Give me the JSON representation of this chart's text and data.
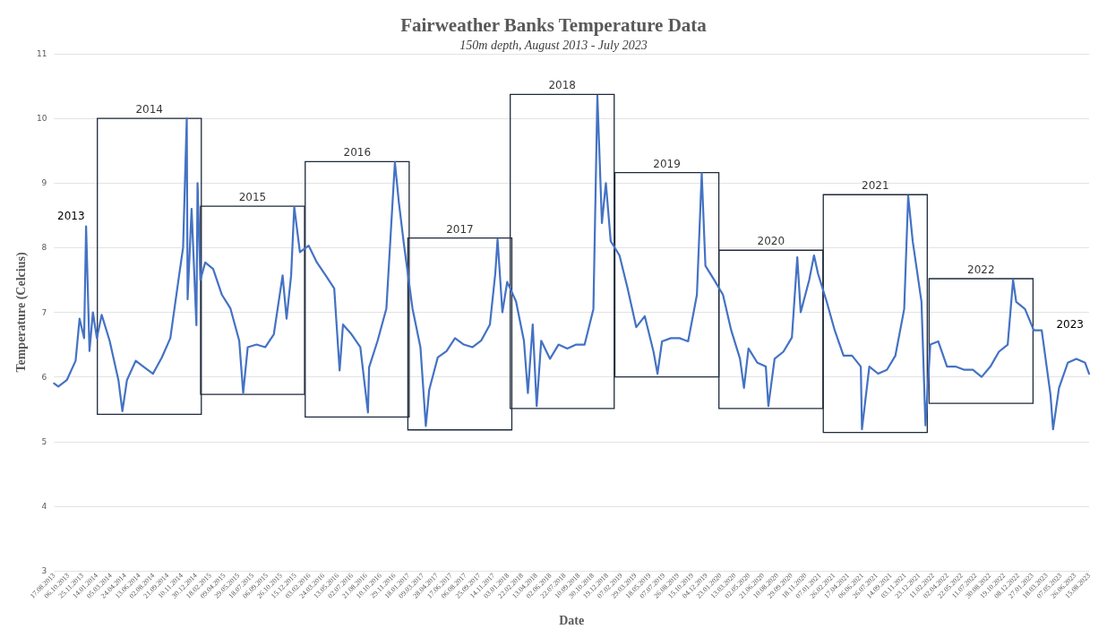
{
  "chart_data": {
    "type": "line",
    "title": "Fairweather Banks Temperature Data",
    "subtitle": "150m depth, August 2013 - July 2023",
    "xlabel": "Date",
    "ylabel": "Temperature (Celcius)",
    "xlim": [
      "2013-08-17",
      "2023-08-15"
    ],
    "ylim": [
      3,
      11
    ],
    "yticks": [
      3,
      4,
      5,
      6,
      7,
      8,
      9,
      10,
      11
    ],
    "grid": "y",
    "marker": "none",
    "line_style": "solid",
    "xticks": [
      {
        "value": "2013-08-17",
        "label": "17.08.2013"
      },
      {
        "value": "2013-10-06",
        "label": "06.10.2013"
      },
      {
        "value": "2013-11-25",
        "label": "25.11.2013"
      },
      {
        "value": "2014-01-14",
        "label": "14.01.2014"
      },
      {
        "value": "2014-03-05",
        "label": "05.03.2014"
      },
      {
        "value": "2014-04-24",
        "label": "24.04.2014"
      },
      {
        "value": "2014-06-13",
        "label": "13.06.2014"
      },
      {
        "value": "2014-08-02",
        "label": "02.08.2014"
      },
      {
        "value": "2014-09-21",
        "label": "21.09.2014"
      },
      {
        "value": "2014-11-10",
        "label": "10.11.2014"
      },
      {
        "value": "2014-12-30",
        "label": "30.12.2014"
      },
      {
        "value": "2015-02-18",
        "label": "18.02.2015"
      },
      {
        "value": "2015-04-09",
        "label": "09.04.2015"
      },
      {
        "value": "2015-05-29",
        "label": "29.05.2015"
      },
      {
        "value": "2015-07-18",
        "label": "18.07.2015"
      },
      {
        "value": "2015-09-06",
        "label": "06.09.2015"
      },
      {
        "value": "2015-10-26",
        "label": "26.10.2015"
      },
      {
        "value": "2015-12-15",
        "label": "15.12.2015"
      },
      {
        "value": "2016-02-03",
        "label": "03.02.2016"
      },
      {
        "value": "2016-03-24",
        "label": "24.03.2016"
      },
      {
        "value": "2016-05-13",
        "label": "13.05.2016"
      },
      {
        "value": "2016-07-02",
        "label": "02.07.2016"
      },
      {
        "value": "2016-08-21",
        "label": "21.08.2016"
      },
      {
        "value": "2016-10-10",
        "label": "10.10.2016"
      },
      {
        "value": "2016-11-29",
        "label": "29.11.2016"
      },
      {
        "value": "2017-01-18",
        "label": "18.01.2017"
      },
      {
        "value": "2017-03-09",
        "label": "09.03.2017"
      },
      {
        "value": "2017-04-28",
        "label": "28.04.2017"
      },
      {
        "value": "2017-06-17",
        "label": "17.06.2017"
      },
      {
        "value": "2017-08-06",
        "label": "06.08.2017"
      },
      {
        "value": "2017-09-25",
        "label": "25.09.2017"
      },
      {
        "value": "2017-11-14",
        "label": "14.11.2017"
      },
      {
        "value": "2018-01-03",
        "label": "03.01.2018"
      },
      {
        "value": "2018-02-22",
        "label": "22.02.2018"
      },
      {
        "value": "2018-04-13",
        "label": "13.04.2018"
      },
      {
        "value": "2018-06-02",
        "label": "02.06.2018"
      },
      {
        "value": "2018-07-22",
        "label": "22.07.2018"
      },
      {
        "value": "2018-09-10",
        "label": "10.09.2018"
      },
      {
        "value": "2018-10-30",
        "label": "30.10.2018"
      },
      {
        "value": "2018-12-19",
        "label": "19.12.2018"
      },
      {
        "value": "2019-02-07",
        "label": "07.02.2019"
      },
      {
        "value": "2019-03-29",
        "label": "29.03.2019"
      },
      {
        "value": "2019-05-18",
        "label": "18.05.2019"
      },
      {
        "value": "2019-07-07",
        "label": "07.07.2019"
      },
      {
        "value": "2019-08-26",
        "label": "26.08.2019"
      },
      {
        "value": "2019-10-15",
        "label": "15.10.2019"
      },
      {
        "value": "2019-12-04",
        "label": "04.12.2019"
      },
      {
        "value": "2020-01-23",
        "label": "23.01.2020"
      },
      {
        "value": "2020-03-13",
        "label": "13.03.2020"
      },
      {
        "value": "2020-05-02",
        "label": "02.05.2020"
      },
      {
        "value": "2020-06-21",
        "label": "21.06.2020"
      },
      {
        "value": "2020-08-10",
        "label": "10.08.2020"
      },
      {
        "value": "2020-09-29",
        "label": "29.09.2020"
      },
      {
        "value": "2020-11-18",
        "label": "18.11.2020"
      },
      {
        "value": "2021-01-07",
        "label": "07.01.2021"
      },
      {
        "value": "2021-02-26",
        "label": "26.02.2021"
      },
      {
        "value": "2021-04-17",
        "label": "17.04.2021"
      },
      {
        "value": "2021-06-06",
        "label": "06.06.2021"
      },
      {
        "value": "2021-07-26",
        "label": "26.07.2021"
      },
      {
        "value": "2021-09-14",
        "label": "14.09.2021"
      },
      {
        "value": "2021-11-03",
        "label": "03.11.2021"
      },
      {
        "value": "2021-12-23",
        "label": "23.12.2021"
      },
      {
        "value": "2022-02-11",
        "label": "11.02.2022"
      },
      {
        "value": "2022-04-02",
        "label": "02.04.2022"
      },
      {
        "value": "2022-05-22",
        "label": "22.05.2022"
      },
      {
        "value": "2022-07-11",
        "label": "11.07.2022"
      },
      {
        "value": "2022-08-30",
        "label": "30.08.2022"
      },
      {
        "value": "2022-10-19",
        "label": "19.10.2022"
      },
      {
        "value": "2022-12-08",
        "label": "08.12.2022"
      },
      {
        "value": "2023-01-27",
        "label": "27.01.2023"
      },
      {
        "value": "2023-03-18",
        "label": "18.03.2023"
      },
      {
        "value": "2023-05-07",
        "label": "07.05.2023"
      },
      {
        "value": "2023-06-26",
        "label": "26.06.2023"
      },
      {
        "value": "2023-08-15",
        "label": "15.08.2023"
      }
    ],
    "series": [
      {
        "color": "#4472c4",
        "x": [
          "2013-08-17",
          "2013-09-01",
          "2013-10-01",
          "2013-11-01",
          "2013-11-15",
          "2013-12-01",
          "2013-12-08",
          "2013-12-20",
          "2014-01-01",
          "2014-01-15",
          "2014-02-01",
          "2014-03-01",
          "2014-04-01",
          "2014-04-15",
          "2014-05-01",
          "2014-06-01",
          "2014-07-01",
          "2014-08-01",
          "2014-09-01",
          "2014-10-01",
          "2014-11-01",
          "2014-11-15",
          "2014-11-28",
          "2014-12-01",
          "2014-12-15",
          "2015-01-01",
          "2015-01-05",
          "2015-01-15",
          "2015-02-01",
          "2015-03-01",
          "2015-04-01",
          "2015-05-01",
          "2015-06-01",
          "2015-06-15",
          "2015-07-01",
          "2015-08-01",
          "2015-09-01",
          "2015-10-01",
          "2015-11-01",
          "2015-11-15",
          "2015-12-01",
          "2015-12-12",
          "2016-01-01",
          "2016-02-01",
          "2016-03-01",
          "2016-04-01",
          "2016-05-01",
          "2016-05-20",
          "2016-06-01",
          "2016-07-01",
          "2016-08-01",
          "2016-08-28",
          "2016-09-01",
          "2016-10-01",
          "2016-11-01",
          "2016-11-20",
          "2016-12-01",
          "2016-12-15",
          "2017-01-01",
          "2017-02-01",
          "2017-03-01",
          "2017-03-20",
          "2017-04-01",
          "2017-05-01",
          "2017-06-01",
          "2017-07-01",
          "2017-08-01",
          "2017-09-01",
          "2017-10-01",
          "2017-11-01",
          "2017-11-20",
          "2017-11-28",
          "2017-12-15",
          "2018-01-01",
          "2018-02-01",
          "2018-03-01",
          "2018-03-15",
          "2018-04-01",
          "2018-04-15",
          "2018-05-01",
          "2018-06-01",
          "2018-07-01",
          "2018-08-01",
          "2018-09-01",
          "2018-10-01",
          "2018-11-01",
          "2018-11-15",
          "2018-12-01",
          "2018-12-15",
          "2019-01-01",
          "2019-02-01",
          "2019-03-01",
          "2019-04-01",
          "2019-05-01",
          "2019-06-01",
          "2019-06-15",
          "2019-07-01",
          "2019-08-01",
          "2019-09-01",
          "2019-10-01",
          "2019-11-01",
          "2019-11-18",
          "2019-12-01",
          "2020-01-01",
          "2020-02-01",
          "2020-03-01",
          "2020-04-01",
          "2020-04-15",
          "2020-05-01",
          "2020-06-01",
          "2020-07-01",
          "2020-07-10",
          "2020-08-01",
          "2020-09-01",
          "2020-10-01",
          "2020-10-20",
          "2020-11-01",
          "2020-12-01",
          "2020-12-18",
          "2021-01-01",
          "2021-02-01",
          "2021-03-01",
          "2021-04-01",
          "2021-05-01",
          "2021-06-01",
          "2021-06-05",
          "2021-07-01",
          "2021-08-01",
          "2021-09-01",
          "2021-10-01",
          "2021-11-01",
          "2021-11-15",
          "2021-12-01",
          "2022-01-01",
          "2022-01-15",
          "2022-02-01",
          "2022-03-01",
          "2022-04-01",
          "2022-05-01",
          "2022-06-01",
          "2022-07-01",
          "2022-08-01",
          "2022-09-01",
          "2022-10-01",
          "2022-11-01",
          "2022-11-20",
          "2022-12-01",
          "2023-01-01",
          "2023-02-01",
          "2023-03-01",
          "2023-04-01",
          "2023-04-10",
          "2023-05-01",
          "2023-06-01",
          "2023-07-01",
          "2023-08-01",
          "2023-08-15"
        ],
        "values": [
          5.9,
          5.85,
          5.95,
          6.25,
          6.9,
          6.6,
          8.33,
          6.4,
          7.0,
          6.6,
          6.96,
          6.56,
          5.95,
          5.47,
          5.95,
          6.25,
          6.15,
          6.05,
          6.3,
          6.6,
          7.57,
          8.0,
          10.0,
          7.2,
          8.6,
          6.8,
          9.0,
          7.5,
          7.77,
          7.67,
          7.27,
          7.06,
          6.56,
          5.75,
          6.46,
          6.5,
          6.46,
          6.66,
          7.57,
          6.9,
          7.57,
          8.63,
          7.93,
          8.03,
          7.77,
          7.57,
          7.37,
          6.1,
          6.81,
          6.66,
          6.46,
          5.45,
          6.15,
          6.56,
          7.06,
          8.5,
          9.32,
          8.7,
          8.08,
          7.06,
          6.46,
          5.24,
          5.8,
          6.3,
          6.4,
          6.6,
          6.5,
          6.46,
          6.56,
          6.81,
          7.6,
          8.13,
          7.0,
          7.47,
          7.17,
          6.56,
          5.75,
          6.81,
          5.55,
          6.56,
          6.28,
          6.5,
          6.44,
          6.5,
          6.5,
          7.05,
          10.35,
          8.38,
          9.0,
          8.1,
          7.88,
          7.38,
          6.77,
          6.94,
          6.39,
          6.05,
          6.55,
          6.6,
          6.6,
          6.55,
          7.27,
          9.15,
          7.72,
          7.5,
          7.27,
          6.72,
          6.28,
          5.83,
          6.44,
          6.22,
          6.16,
          5.55,
          6.28,
          6.39,
          6.61,
          7.85,
          7.0,
          7.5,
          7.88,
          7.6,
          7.16,
          6.72,
          6.33,
          6.33,
          6.16,
          5.19,
          6.16,
          6.05,
          6.11,
          6.33,
          7.05,
          8.8,
          8.1,
          7.16,
          5.25,
          6.5,
          6.55,
          6.16,
          6.16,
          6.11,
          6.11,
          6.0,
          6.16,
          6.39,
          6.5,
          7.5,
          7.16,
          7.05,
          6.72,
          6.72,
          5.72,
          5.19,
          5.83,
          6.22,
          6.28,
          6.22,
          6.05
        ]
      },
      {
        "type": "bar",
        "color": "#1f2a3c",
        "x": [
          "2014-07-19",
          "2015-07-18",
          "2016-07-21",
          "2017-07-18",
          "2018-07-14",
          "2019-07-18",
          "2020-07-19",
          "2021-07-22",
          "2022-07-30"
        ],
        "base": [
          5.42,
          5.73,
          5.38,
          5.18,
          5.51,
          6.0,
          5.51,
          5.14,
          5.59
        ],
        "values": [
          4.58,
          2.91,
          3.95,
          2.97,
          4.86,
          3.16,
          2.45,
          3.68,
          1.93
        ]
      }
    ],
    "annotations": [
      "2013",
      {
        "text": "2014",
        "x": "2014-07-19",
        "y": 10.0
      },
      {
        "text": "2015",
        "x": "2015-07-18",
        "y": 8.64
      },
      {
        "text": "2016",
        "x": "2016-07-21",
        "y": 9.33
      },
      {
        "text": "2017",
        "x": "2017-07-18",
        "y": 8.15
      },
      {
        "text": "2018",
        "x": "2018-07-14",
        "y": 10.37
      },
      {
        "text": "2019",
        "x": "2019-07-18",
        "y": 9.16
      },
      {
        "text": "2020",
        "x": "2020-07-19",
        "y": 7.96
      },
      {
        "text": "2021",
        "x": "2021-07-22",
        "y": 8.82
      },
      {
        "text": "2022",
        "x": "2022-07-30",
        "y": 7.52
      },
      "2023"
    ]
  }
}
